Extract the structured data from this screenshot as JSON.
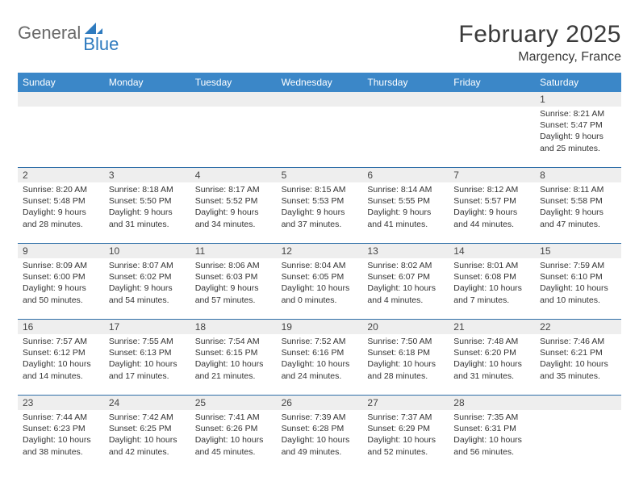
{
  "brand": {
    "general": "General",
    "blue": "Blue"
  },
  "title": {
    "month": "February 2025",
    "location": "Margency, France"
  },
  "colors": {
    "header_bg": "#3b87c8",
    "header_text": "#ffffff",
    "daynum_bg": "#eeeeee",
    "rule": "#2f6fa8",
    "text": "#333333",
    "logo_gray": "#6a6a6a",
    "logo_blue": "#2f7bbf"
  },
  "day_names": [
    "Sunday",
    "Monday",
    "Tuesday",
    "Wednesday",
    "Thursday",
    "Friday",
    "Saturday"
  ],
  "weeks": [
    [
      {
        "n": "",
        "lines": []
      },
      {
        "n": "",
        "lines": []
      },
      {
        "n": "",
        "lines": []
      },
      {
        "n": "",
        "lines": []
      },
      {
        "n": "",
        "lines": []
      },
      {
        "n": "",
        "lines": []
      },
      {
        "n": "1",
        "lines": [
          "Sunrise: 8:21 AM",
          "Sunset: 5:47 PM",
          "Daylight: 9 hours and 25 minutes."
        ]
      }
    ],
    [
      {
        "n": "2",
        "lines": [
          "Sunrise: 8:20 AM",
          "Sunset: 5:48 PM",
          "Daylight: 9 hours and 28 minutes."
        ]
      },
      {
        "n": "3",
        "lines": [
          "Sunrise: 8:18 AM",
          "Sunset: 5:50 PM",
          "Daylight: 9 hours and 31 minutes."
        ]
      },
      {
        "n": "4",
        "lines": [
          "Sunrise: 8:17 AM",
          "Sunset: 5:52 PM",
          "Daylight: 9 hours and 34 minutes."
        ]
      },
      {
        "n": "5",
        "lines": [
          "Sunrise: 8:15 AM",
          "Sunset: 5:53 PM",
          "Daylight: 9 hours and 37 minutes."
        ]
      },
      {
        "n": "6",
        "lines": [
          "Sunrise: 8:14 AM",
          "Sunset: 5:55 PM",
          "Daylight: 9 hours and 41 minutes."
        ]
      },
      {
        "n": "7",
        "lines": [
          "Sunrise: 8:12 AM",
          "Sunset: 5:57 PM",
          "Daylight: 9 hours and 44 minutes."
        ]
      },
      {
        "n": "8",
        "lines": [
          "Sunrise: 8:11 AM",
          "Sunset: 5:58 PM",
          "Daylight: 9 hours and 47 minutes."
        ]
      }
    ],
    [
      {
        "n": "9",
        "lines": [
          "Sunrise: 8:09 AM",
          "Sunset: 6:00 PM",
          "Daylight: 9 hours and 50 minutes."
        ]
      },
      {
        "n": "10",
        "lines": [
          "Sunrise: 8:07 AM",
          "Sunset: 6:02 PM",
          "Daylight: 9 hours and 54 minutes."
        ]
      },
      {
        "n": "11",
        "lines": [
          "Sunrise: 8:06 AM",
          "Sunset: 6:03 PM",
          "Daylight: 9 hours and 57 minutes."
        ]
      },
      {
        "n": "12",
        "lines": [
          "Sunrise: 8:04 AM",
          "Sunset: 6:05 PM",
          "Daylight: 10 hours and 0 minutes."
        ]
      },
      {
        "n": "13",
        "lines": [
          "Sunrise: 8:02 AM",
          "Sunset: 6:07 PM",
          "Daylight: 10 hours and 4 minutes."
        ]
      },
      {
        "n": "14",
        "lines": [
          "Sunrise: 8:01 AM",
          "Sunset: 6:08 PM",
          "Daylight: 10 hours and 7 minutes."
        ]
      },
      {
        "n": "15",
        "lines": [
          "Sunrise: 7:59 AM",
          "Sunset: 6:10 PM",
          "Daylight: 10 hours and 10 minutes."
        ]
      }
    ],
    [
      {
        "n": "16",
        "lines": [
          "Sunrise: 7:57 AM",
          "Sunset: 6:12 PM",
          "Daylight: 10 hours and 14 minutes."
        ]
      },
      {
        "n": "17",
        "lines": [
          "Sunrise: 7:55 AM",
          "Sunset: 6:13 PM",
          "Daylight: 10 hours and 17 minutes."
        ]
      },
      {
        "n": "18",
        "lines": [
          "Sunrise: 7:54 AM",
          "Sunset: 6:15 PM",
          "Daylight: 10 hours and 21 minutes."
        ]
      },
      {
        "n": "19",
        "lines": [
          "Sunrise: 7:52 AM",
          "Sunset: 6:16 PM",
          "Daylight: 10 hours and 24 minutes."
        ]
      },
      {
        "n": "20",
        "lines": [
          "Sunrise: 7:50 AM",
          "Sunset: 6:18 PM",
          "Daylight: 10 hours and 28 minutes."
        ]
      },
      {
        "n": "21",
        "lines": [
          "Sunrise: 7:48 AM",
          "Sunset: 6:20 PM",
          "Daylight: 10 hours and 31 minutes."
        ]
      },
      {
        "n": "22",
        "lines": [
          "Sunrise: 7:46 AM",
          "Sunset: 6:21 PM",
          "Daylight: 10 hours and 35 minutes."
        ]
      }
    ],
    [
      {
        "n": "23",
        "lines": [
          "Sunrise: 7:44 AM",
          "Sunset: 6:23 PM",
          "Daylight: 10 hours and 38 minutes."
        ]
      },
      {
        "n": "24",
        "lines": [
          "Sunrise: 7:42 AM",
          "Sunset: 6:25 PM",
          "Daylight: 10 hours and 42 minutes."
        ]
      },
      {
        "n": "25",
        "lines": [
          "Sunrise: 7:41 AM",
          "Sunset: 6:26 PM",
          "Daylight: 10 hours and 45 minutes."
        ]
      },
      {
        "n": "26",
        "lines": [
          "Sunrise: 7:39 AM",
          "Sunset: 6:28 PM",
          "Daylight: 10 hours and 49 minutes."
        ]
      },
      {
        "n": "27",
        "lines": [
          "Sunrise: 7:37 AM",
          "Sunset: 6:29 PM",
          "Daylight: 10 hours and 52 minutes."
        ]
      },
      {
        "n": "28",
        "lines": [
          "Sunrise: 7:35 AM",
          "Sunset: 6:31 PM",
          "Daylight: 10 hours and 56 minutes."
        ]
      },
      {
        "n": "",
        "lines": []
      }
    ]
  ]
}
